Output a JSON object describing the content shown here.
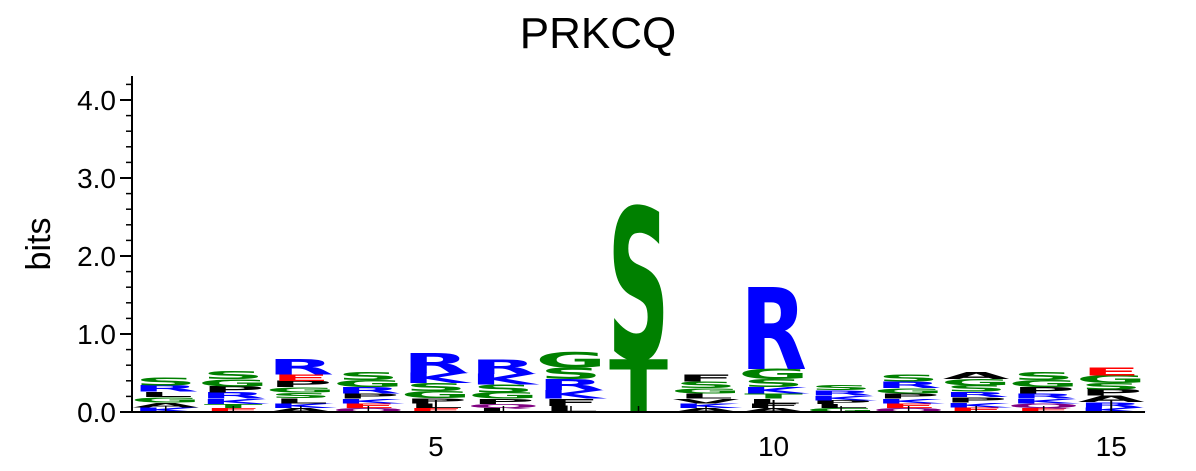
{
  "chart_data": {
    "type": "sequence-logo",
    "title": "PRKCQ",
    "ylabel": "bits",
    "xlabel": "",
    "ylim": [
      0,
      4.3
    ],
    "xlim": [
      0.5,
      15.5
    ],
    "yticks": [
      "0.0",
      "1.0",
      "2.0",
      "3.0",
      "4.0"
    ],
    "xticks": [
      "5",
      "10",
      "15"
    ],
    "colors": {
      "basic": "#0000ff",
      "polar": "#008000",
      "hydrophobic": "#000000",
      "acidic": "#ff0000",
      "amide": "#800080"
    },
    "positions": [
      {
        "pos": 1,
        "letters": [
          {
            "c": "S",
            "h": 0.1,
            "k": "polar"
          },
          {
            "c": "R",
            "h": 0.08,
            "k": "basic"
          },
          {
            "c": "G",
            "h": 0.07,
            "k": "polar"
          },
          {
            "c": "L",
            "h": 0.07,
            "k": "hydrophobic"
          },
          {
            "c": "K",
            "h": 0.06,
            "k": "basic"
          },
          {
            "c": "A",
            "h": 0.06,
            "k": "hydrophobic"
          }
        ]
      },
      {
        "pos": 2,
        "letters": [
          {
            "c": "S",
            "h": 0.1,
            "k": "polar"
          },
          {
            "c": "G",
            "h": 0.09,
            "k": "polar"
          },
          {
            "c": "R",
            "h": 0.08,
            "k": "basic"
          },
          {
            "c": "P",
            "h": 0.08,
            "k": "hydrophobic"
          },
          {
            "c": "K",
            "h": 0.07,
            "k": "basic"
          },
          {
            "c": "E",
            "h": 0.05,
            "k": "acidic"
          },
          {
            "c": "T",
            "h": 0.05,
            "k": "polar"
          }
        ]
      },
      {
        "pos": 3,
        "letters": [
          {
            "c": "R",
            "h": 0.2,
            "k": "basic"
          },
          {
            "c": "P",
            "h": 0.08,
            "k": "hydrophobic"
          },
          {
            "c": "E",
            "h": 0.08,
            "k": "acidic"
          },
          {
            "c": "L",
            "h": 0.07,
            "k": "hydrophobic"
          },
          {
            "c": "S",
            "h": 0.07,
            "k": "polar"
          },
          {
            "c": "G",
            "h": 0.07,
            "k": "polar"
          },
          {
            "c": "K",
            "h": 0.06,
            "k": "basic"
          },
          {
            "c": "A",
            "h": 0.05,
            "k": "hydrophobic"
          }
        ]
      },
      {
        "pos": 4,
        "letters": [
          {
            "c": "S",
            "h": 0.1,
            "k": "polar"
          },
          {
            "c": "G",
            "h": 0.09,
            "k": "polar"
          },
          {
            "c": "R",
            "h": 0.08,
            "k": "basic"
          },
          {
            "c": "P",
            "h": 0.07,
            "k": "hydrophobic"
          },
          {
            "c": "E",
            "h": 0.06,
            "k": "acidic"
          },
          {
            "c": "K",
            "h": 0.06,
            "k": "basic"
          },
          {
            "c": "Q",
            "h": 0.05,
            "k": "amide"
          }
        ]
      },
      {
        "pos": 5,
        "letters": [
          {
            "c": "R",
            "h": 0.26,
            "k": "basic"
          },
          {
            "c": "K",
            "h": 0.13,
            "k": "basic"
          },
          {
            "c": "S",
            "h": 0.1,
            "k": "polar"
          },
          {
            "c": "G",
            "h": 0.09,
            "k": "polar"
          },
          {
            "c": "P",
            "h": 0.07,
            "k": "hydrophobic"
          },
          {
            "c": "L",
            "h": 0.06,
            "k": "hydrophobic"
          },
          {
            "c": "E",
            "h": 0.05,
            "k": "acidic"
          }
        ]
      },
      {
        "pos": 6,
        "letters": [
          {
            "c": "R",
            "h": 0.18,
            "k": "basic"
          },
          {
            "c": "K",
            "h": 0.14,
            "k": "basic"
          },
          {
            "c": "S",
            "h": 0.1,
            "k": "polar"
          },
          {
            "c": "G",
            "h": 0.08,
            "k": "polar"
          },
          {
            "c": "P",
            "h": 0.07,
            "k": "hydrophobic"
          },
          {
            "c": "L",
            "h": 0.05,
            "k": "hydrophobic"
          },
          {
            "c": "Q",
            "h": 0.05,
            "k": "amide"
          }
        ]
      },
      {
        "pos": 7,
        "letters": [
          {
            "c": "G",
            "h": 0.2,
            "k": "polar"
          },
          {
            "c": "S",
            "h": 0.15,
            "k": "polar"
          },
          {
            "c": "R",
            "h": 0.14,
            "k": "basic"
          },
          {
            "c": "K",
            "h": 0.11,
            "k": "basic"
          },
          {
            "c": "F",
            "h": 0.09,
            "k": "hydrophobic"
          },
          {
            "c": "L",
            "h": 0.08,
            "k": "hydrophobic"
          }
        ]
      },
      {
        "pos": 8,
        "letters": [
          {
            "c": "S",
            "h": 1.95,
            "k": "polar"
          },
          {
            "c": "T",
            "h": 0.68,
            "k": "polar"
          }
        ]
      },
      {
        "pos": 9,
        "letters": [
          {
            "c": "F",
            "h": 0.09,
            "k": "hydrophobic"
          },
          {
            "c": "L",
            "h": 0.07,
            "k": "hydrophobic"
          },
          {
            "c": "S",
            "h": 0.08,
            "k": "polar"
          },
          {
            "c": "G",
            "h": 0.07,
            "k": "polar"
          },
          {
            "c": "K",
            "h": 0.06,
            "k": "basic"
          },
          {
            "c": "V",
            "h": 0.06,
            "k": "hydrophobic"
          },
          {
            "c": "A",
            "h": 0.05,
            "k": "hydrophobic"
          }
        ]
      },
      {
        "pos": 10,
        "letters": [
          {
            "c": "R",
            "h": 1.05,
            "k": "basic"
          },
          {
            "c": "G",
            "h": 0.13,
            "k": "polar"
          },
          {
            "c": "S",
            "h": 0.1,
            "k": "polar"
          },
          {
            "c": "K",
            "h": 0.08,
            "k": "basic"
          },
          {
            "c": "T",
            "h": 0.07,
            "k": "polar"
          },
          {
            "c": "F",
            "h": 0.06,
            "k": "hydrophobic"
          },
          {
            "c": "L",
            "h": 0.06,
            "k": "hydrophobic"
          },
          {
            "c": "A",
            "h": 0.05,
            "k": "hydrophobic"
          }
        ]
      },
      {
        "pos": 11,
        "letters": [
          {
            "c": "R",
            "h": 0.07,
            "k": "basic"
          },
          {
            "c": "S",
            "h": 0.07,
            "k": "polar"
          },
          {
            "c": "K",
            "h": 0.06,
            "k": "basic"
          },
          {
            "c": "G",
            "h": 0.05,
            "k": "polar"
          },
          {
            "c": "L",
            "h": 0.05,
            "k": "hydrophobic"
          },
          {
            "c": "P",
            "h": 0.05,
            "k": "hydrophobic"
          }
        ]
      },
      {
        "pos": 12,
        "letters": [
          {
            "c": "S",
            "h": 0.09,
            "k": "polar"
          },
          {
            "c": "R",
            "h": 0.08,
            "k": "basic"
          },
          {
            "c": "P",
            "h": 0.07,
            "k": "hydrophobic"
          },
          {
            "c": "G",
            "h": 0.07,
            "k": "polar"
          },
          {
            "c": "E",
            "h": 0.06,
            "k": "acidic"
          },
          {
            "c": "K",
            "h": 0.06,
            "k": "basic"
          },
          {
            "c": "Q",
            "h": 0.05,
            "k": "amide"
          }
        ]
      },
      {
        "pos": 13,
        "letters": [
          {
            "c": "A",
            "h": 0.09,
            "k": "hydrophobic"
          },
          {
            "c": "S",
            "h": 0.08,
            "k": "polar"
          },
          {
            "c": "G",
            "h": 0.08,
            "k": "polar"
          },
          {
            "c": "P",
            "h": 0.07,
            "k": "hydrophobic"
          },
          {
            "c": "R",
            "h": 0.07,
            "k": "basic"
          },
          {
            "c": "E",
            "h": 0.06,
            "k": "acidic"
          },
          {
            "c": "K",
            "h": 0.06,
            "k": "basic"
          }
        ]
      },
      {
        "pos": 14,
        "letters": [
          {
            "c": "S",
            "h": 0.1,
            "k": "polar"
          },
          {
            "c": "G",
            "h": 0.09,
            "k": "polar"
          },
          {
            "c": "P",
            "h": 0.08,
            "k": "hydrophobic"
          },
          {
            "c": "Q",
            "h": 0.06,
            "k": "amide"
          },
          {
            "c": "R",
            "h": 0.07,
            "k": "basic"
          },
          {
            "c": "K",
            "h": 0.06,
            "k": "basic"
          },
          {
            "c": "E",
            "h": 0.05,
            "k": "acidic"
          }
        ]
      },
      {
        "pos": 15,
        "letters": [
          {
            "c": "G",
            "h": 0.1,
            "k": "polar"
          },
          {
            "c": "E",
            "h": 0.1,
            "k": "acidic"
          },
          {
            "c": "A",
            "h": 0.08,
            "k": "hydrophobic"
          },
          {
            "c": "P",
            "h": 0.08,
            "k": "hydrophobic"
          },
          {
            "c": "S",
            "h": 0.08,
            "k": "polar"
          },
          {
            "c": "R",
            "h": 0.07,
            "k": "basic"
          },
          {
            "c": "K",
            "h": 0.06,
            "k": "basic"
          }
        ]
      }
    ]
  }
}
